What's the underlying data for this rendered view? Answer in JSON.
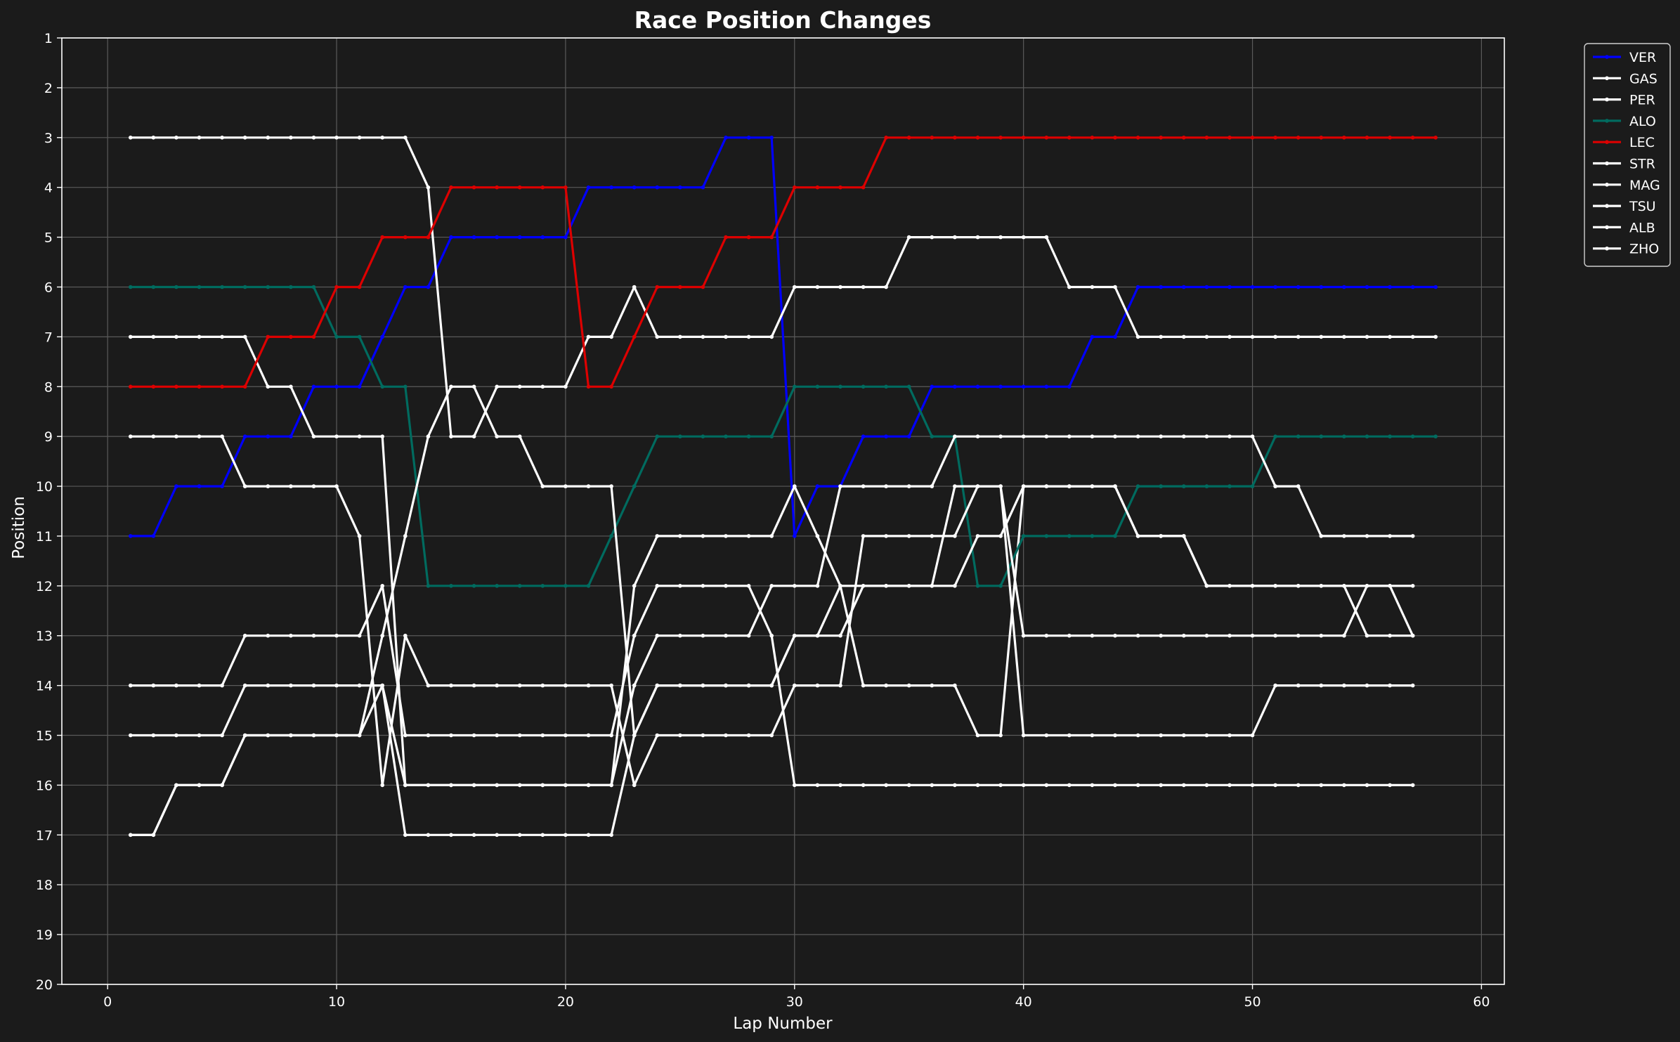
{
  "chart_data": {
    "type": "line",
    "title": "Race Position Changes",
    "xlabel": "Lap Number",
    "ylabel": "Position",
    "xlim": [
      -2,
      61
    ],
    "ylim": [
      20,
      1
    ],
    "y_inverted": true,
    "xticks": [
      0,
      10,
      20,
      30,
      40,
      50,
      60
    ],
    "yticks": [
      1,
      2,
      3,
      4,
      5,
      6,
      7,
      8,
      9,
      10,
      11,
      12,
      13,
      14,
      15,
      16,
      17,
      18,
      19,
      20
    ],
    "grid": true,
    "legend_position": "top-right (outside plot)",
    "background": "#1b1b1b",
    "series": [
      {
        "name": "VER",
        "color": "#0000ff",
        "x_start": 1,
        "values": [
          11,
          11,
          10,
          10,
          10,
          9,
          9,
          9,
          8,
          8,
          8,
          7,
          6,
          6,
          5,
          5,
          5,
          5,
          5,
          5,
          4,
          4,
          4,
          4,
          4,
          4,
          3,
          3,
          3,
          11,
          10,
          10,
          9,
          9,
          9,
          8,
          8,
          8,
          8,
          8,
          8,
          8,
          7,
          7,
          6,
          6,
          6,
          6,
          6,
          6,
          6,
          6,
          6,
          6,
          6,
          6,
          6,
          6
        ]
      },
      {
        "name": "GAS",
        "color": "#ffffff",
        "x_start": 1,
        "values": [
          3,
          3,
          3,
          3,
          3,
          3,
          3,
          3,
          3,
          3,
          3,
          3,
          3,
          4,
          9,
          9,
          8,
          8,
          8,
          8,
          7,
          7,
          6,
          7,
          7,
          7,
          7,
          7,
          7,
          6,
          6,
          6,
          6,
          6,
          5,
          5,
          5,
          5,
          5,
          5,
          5,
          6,
          6,
          6,
          7,
          7,
          7,
          7,
          7,
          7,
          7,
          7,
          7,
          7,
          7,
          7,
          7,
          7
        ]
      },
      {
        "name": "PER",
        "color": "#ffffff",
        "x_start": 1,
        "values": [
          7,
          7,
          7,
          7,
          7,
          7,
          8,
          8,
          9,
          9,
          9,
          9,
          16,
          16,
          16,
          16,
          16,
          16,
          16,
          16,
          16,
          16,
          12,
          11,
          11,
          11,
          11,
          11,
          11,
          10,
          11,
          12,
          14,
          14,
          14,
          14,
          14,
          15,
          15,
          10,
          10,
          10,
          10,
          10,
          11,
          11,
          11,
          12,
          12,
          12,
          12,
          12,
          12,
          12,
          13,
          13,
          13
        ]
      },
      {
        "name": "ALO",
        "color": "#006b5f",
        "x_start": 1,
        "values": [
          6,
          6,
          6,
          6,
          6,
          6,
          6,
          6,
          6,
          7,
          7,
          8,
          8,
          12,
          12,
          12,
          12,
          12,
          12,
          12,
          12,
          11,
          10,
          9,
          9,
          9,
          9,
          9,
          9,
          8,
          8,
          8,
          8,
          8,
          8,
          9,
          9,
          12,
          12,
          11,
          11,
          11,
          11,
          11,
          10,
          10,
          10,
          10,
          10,
          10,
          9,
          9,
          9,
          9,
          9,
          9,
          9,
          9
        ]
      },
      {
        "name": "LEC",
        "color": "#dd0000",
        "x_start": 1,
        "values": [
          8,
          8,
          8,
          8,
          8,
          8,
          7,
          7,
          7,
          6,
          6,
          5,
          5,
          5,
          4,
          4,
          4,
          4,
          4,
          4,
          8,
          8,
          7,
          6,
          6,
          6,
          5,
          5,
          5,
          4,
          4,
          4,
          4,
          3,
          3,
          3,
          3,
          3,
          3,
          3,
          3,
          3,
          3,
          3,
          3,
          3,
          3,
          3,
          3,
          3,
          3,
          3,
          3,
          3,
          3,
          3,
          3,
          3
        ]
      },
      {
        "name": "STR",
        "color": "#ffffff",
        "x_start": 1,
        "values": [
          9,
          9,
          9,
          9,
          9,
          10,
          10,
          10,
          10,
          10,
          11,
          16,
          13,
          14,
          14,
          14,
          14,
          14,
          14,
          14,
          14,
          14,
          16,
          15,
          15,
          15,
          15,
          15,
          15,
          14,
          14,
          14,
          11,
          11,
          11,
          11,
          11,
          10,
          10,
          15,
          15,
          15,
          15,
          15,
          15,
          15,
          15,
          15,
          15,
          15,
          14,
          14,
          14,
          14,
          14,
          14,
          14
        ]
      },
      {
        "name": "MAG",
        "color": "#ffffff",
        "x_start": 1,
        "values": [
          14,
          14,
          14,
          14,
          14,
          13,
          13,
          13,
          13,
          13,
          13,
          12,
          15,
          15,
          15,
          15,
          15,
          15,
          15,
          15,
          15,
          15,
          13,
          12,
          12,
          12,
          12,
          12,
          13,
          16,
          16,
          16,
          16,
          16,
          16,
          16,
          16,
          16,
          16,
          16,
          16,
          16,
          16,
          16,
          16,
          16,
          16,
          16,
          16,
          16,
          16,
          16,
          16,
          16,
          16,
          16,
          16
        ]
      },
      {
        "name": "TSU",
        "color": "#ffffff",
        "x_start": 1,
        "values": [
          15,
          15,
          15,
          15,
          15,
          14,
          14,
          14,
          14,
          14,
          14,
          14,
          16,
          16,
          16,
          16,
          16,
          16,
          16,
          16,
          16,
          16,
          14,
          13,
          13,
          13,
          13,
          13,
          12,
          12,
          12,
          10,
          10,
          10,
          10,
          10,
          9,
          9,
          9,
          9,
          9,
          9,
          9,
          9,
          9,
          9,
          9,
          9,
          9,
          9,
          10,
          10,
          11,
          11,
          11,
          11,
          11
        ]
      },
      {
        "name": "ALB",
        "color": "#ffffff",
        "x_start": 1,
        "values": [
          17,
          17,
          16,
          16,
          16,
          15,
          15,
          15,
          15,
          15,
          15,
          13,
          11,
          9,
          8,
          8,
          9,
          9,
          10,
          10,
          10,
          10,
          15,
          14,
          14,
          14,
          14,
          14,
          14,
          13,
          13,
          12,
          12,
          12,
          12,
          12,
          10,
          10,
          10,
          13,
          13,
          13,
          13,
          13,
          13,
          13,
          13,
          13,
          13,
          13,
          13,
          13,
          13,
          13,
          12,
          12,
          12
        ]
      },
      {
        "name": "ZHO",
        "color": "#ffffff",
        "x_start": 1,
        "values": [
          17,
          17,
          16,
          16,
          16,
          15,
          15,
          15,
          15,
          15,
          15,
          14,
          17,
          17,
          17,
          17,
          17,
          17,
          17,
          17,
          17,
          17,
          15,
          14,
          14,
          14,
          14,
          14,
          14,
          13,
          13,
          13,
          12,
          12,
          12,
          12,
          12,
          11,
          11,
          10,
          10,
          10,
          10,
          10,
          11,
          11,
          11,
          12,
          12,
          12,
          12,
          12,
          12,
          12,
          12,
          12,
          13
        ]
      }
    ]
  }
}
